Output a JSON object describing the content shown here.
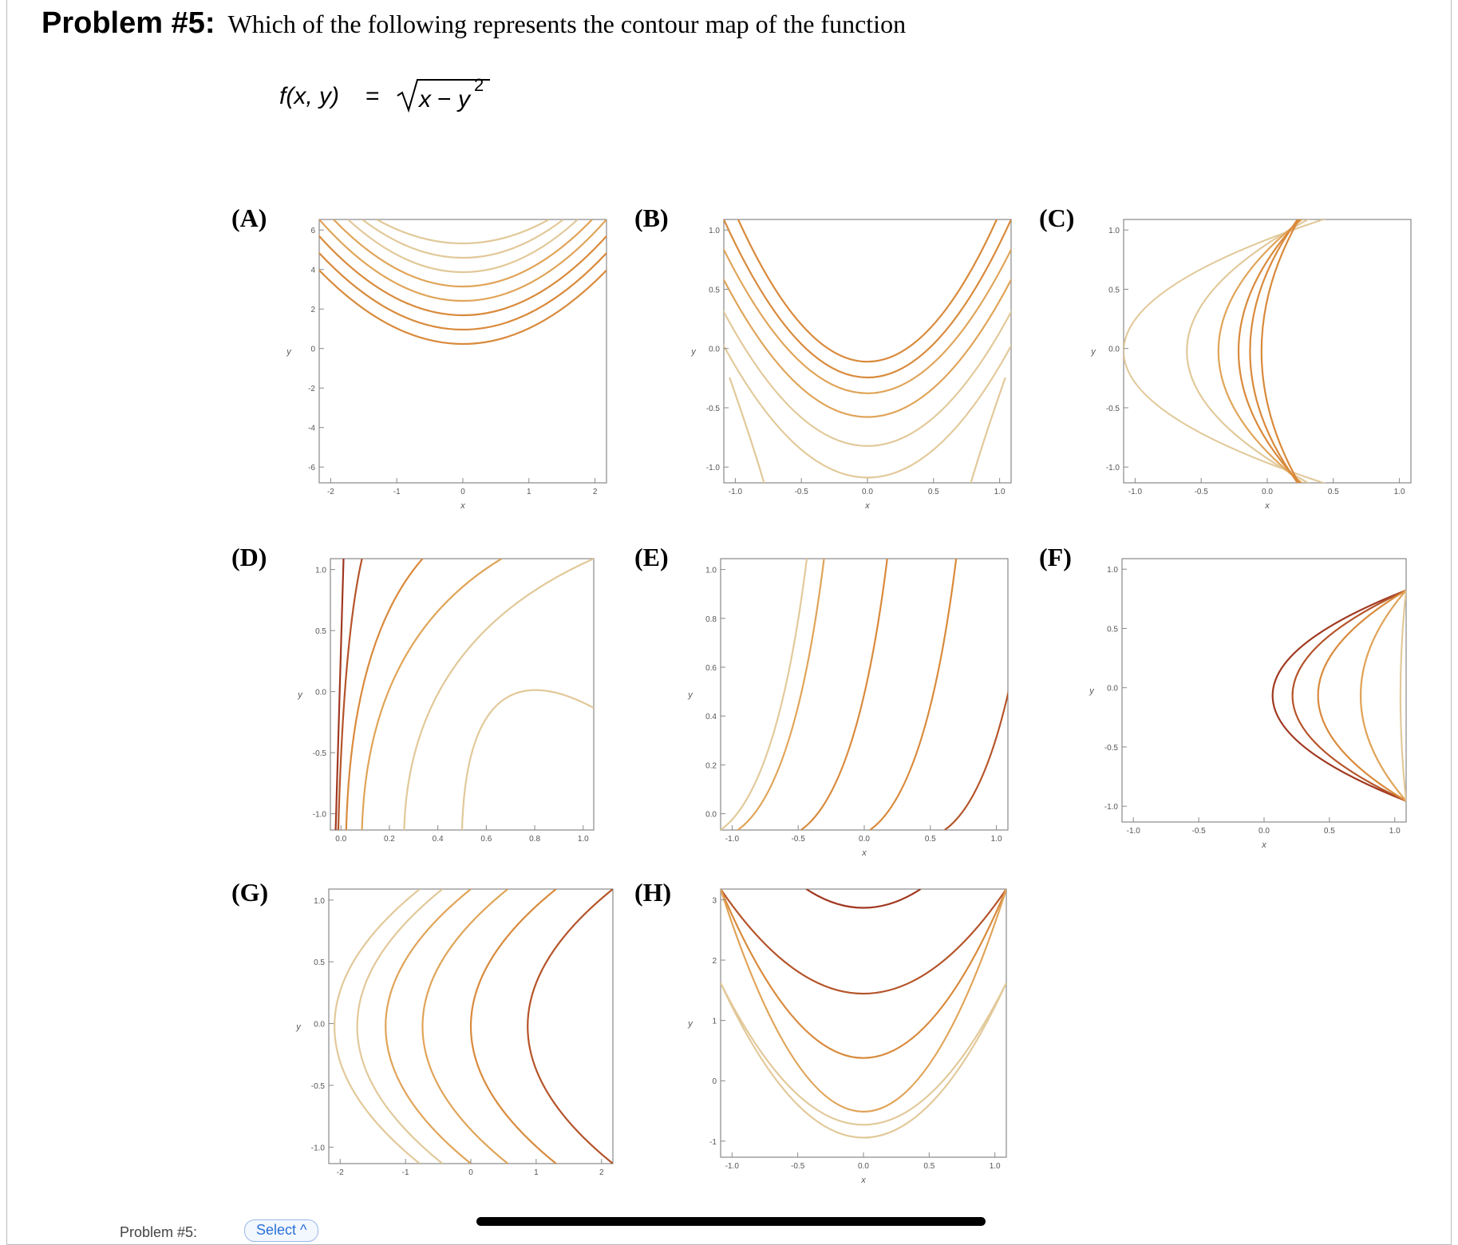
{
  "problem": {
    "number_label": "Problem #5:",
    "question": "Which of the following represents the contour map of the function",
    "formula": {
      "lhs": "f(x, y)",
      "equals": "=",
      "radicand_x": "x",
      "minus": "−",
      "radicand_y": "y",
      "exponent": "2"
    }
  },
  "options": [
    {
      "key": "A",
      "label": "(A)",
      "x_label": "x",
      "y_label": "y",
      "x_ticks": [
        "-2",
        "-1",
        "0",
        "1",
        "2"
      ],
      "y_ticks": [
        "6",
        "4",
        "2",
        "0",
        "-2",
        "-4",
        "-6"
      ]
    },
    {
      "key": "B",
      "label": "(B)",
      "x_label": "x",
      "y_label": "y",
      "x_ticks": [
        "-1.0",
        "-0.5",
        "0.0",
        "0.5",
        "1.0"
      ],
      "y_ticks": [
        "1.0",
        "0.5",
        "0.0",
        "-0.5",
        "-1.0"
      ]
    },
    {
      "key": "C",
      "label": "(C)",
      "x_label": "x",
      "y_label": "y",
      "x_ticks": [
        "-1.0",
        "-0.5",
        "0.0",
        "0.5",
        "1.0"
      ],
      "y_ticks": [
        "1.0",
        "0.5",
        "0.0",
        "-0.5",
        "-1.0"
      ]
    },
    {
      "key": "D",
      "label": "(D)",
      "x_label": "",
      "y_label": "y",
      "x_ticks": [
        "0.0",
        "0.2",
        "0.4",
        "0.6",
        "0.8",
        "1.0"
      ],
      "y_ticks": [
        "1.0",
        "0.5",
        "0.0",
        "-0.5",
        "-1.0"
      ]
    },
    {
      "key": "E",
      "label": "(E)",
      "x_label": "x",
      "y_label": "y",
      "x_ticks": [
        "-1.0",
        "-0.5",
        "0.0",
        "0.5",
        "1.0"
      ],
      "y_ticks": [
        "1.0",
        "0.8",
        "0.6",
        "0.4",
        "0.2",
        "0.0"
      ]
    },
    {
      "key": "F",
      "label": "(F)",
      "x_label": "x",
      "y_label": "y",
      "x_ticks": [
        "-1.0",
        "-0.5",
        "0.0",
        "0.5",
        "1.0"
      ],
      "y_ticks": [
        "1.0",
        "0.5",
        "0.0",
        "-0.5",
        "-1.0"
      ]
    },
    {
      "key": "G",
      "label": "(G)",
      "x_label": "",
      "y_label": "y",
      "x_ticks": [
        "-2",
        "-1",
        "0",
        "1",
        "2"
      ],
      "y_ticks": [
        "1.0",
        "0.5",
        "0.0",
        "-0.5",
        "-1.0"
      ]
    },
    {
      "key": "H",
      "label": "(H)",
      "x_label": "x",
      "y_label": "y",
      "x_ticks": [
        "-1.0",
        "-0.5",
        "0.0",
        "0.5",
        "1.0"
      ],
      "y_ticks": [
        "3",
        "2",
        "1",
        "0",
        "-1"
      ]
    }
  ],
  "footer": {
    "problem_label": "Problem #5:",
    "select_label": "Select ^"
  },
  "colors": {
    "light": "#e2c99a",
    "mid": "#e0a458",
    "orange": "#d98a3c",
    "dark": "#b5542a",
    "darkest": "#a03820",
    "axis": "#888888"
  }
}
